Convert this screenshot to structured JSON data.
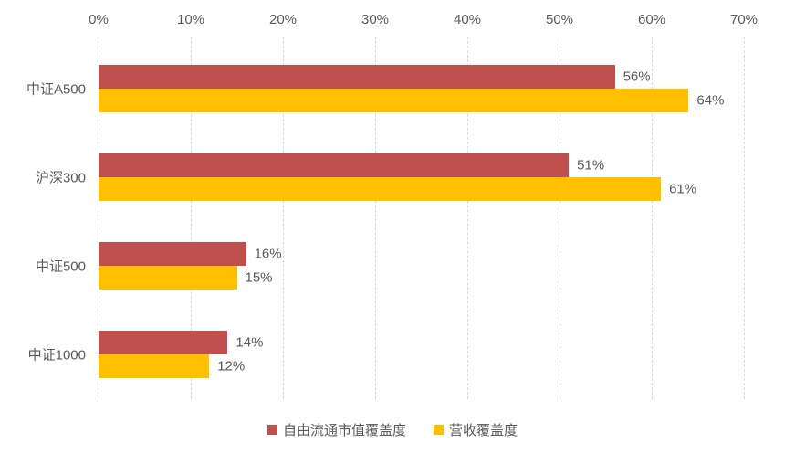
{
  "chart_data": {
    "type": "bar",
    "orientation": "horizontal",
    "title": "",
    "xlabel": "",
    "ylabel": "",
    "categories": [
      "中证A500",
      "沪深300",
      "中证500",
      "中证1000"
    ],
    "series": [
      {
        "name": "自由流通市值覆盖度",
        "color": "#c0504d",
        "values": [
          56,
          51,
          16,
          14
        ]
      },
      {
        "name": "营收覆盖度",
        "color": "#ffc000",
        "values": [
          64,
          61,
          15,
          12
        ]
      }
    ],
    "value_label_suffix": "%",
    "xlim": [
      0,
      70
    ],
    "x_ticks": [
      "0%",
      "10%",
      "20%",
      "30%",
      "40%",
      "50%",
      "60%",
      "70%"
    ],
    "axis_position": "top",
    "grid": true,
    "gridline_style": "dashed",
    "gridline_color": "#d9d9d9",
    "text_color": "#595959",
    "legend_position": "bottom"
  }
}
